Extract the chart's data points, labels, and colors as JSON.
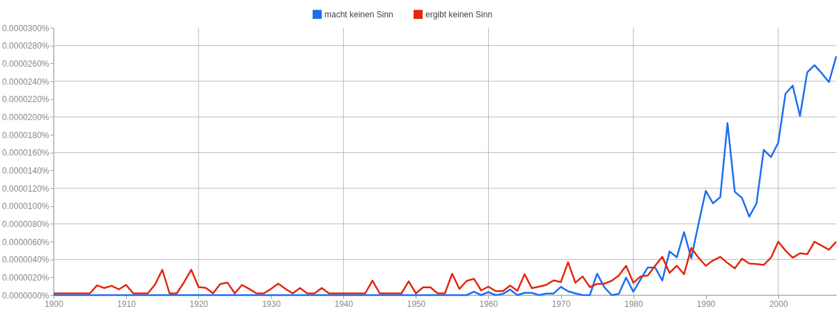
{
  "chart_data": {
    "type": "line",
    "x": [
      1900,
      1901,
      1902,
      1903,
      1904,
      1905,
      1906,
      1907,
      1908,
      1909,
      1910,
      1911,
      1912,
      1913,
      1914,
      1915,
      1916,
      1917,
      1918,
      1919,
      1920,
      1921,
      1922,
      1923,
      1924,
      1925,
      1926,
      1927,
      1928,
      1929,
      1930,
      1931,
      1932,
      1933,
      1934,
      1935,
      1936,
      1937,
      1938,
      1939,
      1940,
      1941,
      1942,
      1943,
      1944,
      1945,
      1946,
      1947,
      1948,
      1949,
      1950,
      1951,
      1952,
      1953,
      1954,
      1955,
      1956,
      1957,
      1958,
      1959,
      1960,
      1961,
      1962,
      1963,
      1964,
      1965,
      1966,
      1967,
      1968,
      1969,
      1970,
      1971,
      1972,
      1973,
      1974,
      1975,
      1976,
      1977,
      1978,
      1979,
      1980,
      1981,
      1982,
      1983,
      1984,
      1985,
      1986,
      1987,
      1988,
      1989,
      1990,
      1991,
      1992,
      1993,
      1994,
      1995,
      1996,
      1997,
      1998,
      1999,
      2000,
      2001,
      2002,
      2003,
      2004,
      2005,
      2006,
      2007,
      2008
    ],
    "series": [
      {
        "name": "macht keinen Sinn",
        "color": "#1a6ff0",
        "values": [
          0,
          0,
          0,
          0,
          0,
          0,
          0,
          0,
          0,
          0,
          0,
          0,
          0,
          0,
          0,
          0,
          0,
          0,
          0,
          0,
          0,
          0,
          0,
          0,
          0,
          0,
          0,
          0,
          0,
          0,
          0,
          0,
          0,
          0,
          0,
          0,
          0,
          0,
          0,
          0,
          0,
          0,
          0,
          0,
          0,
          0,
          0,
          0,
          0,
          0,
          0,
          0,
          0,
          0,
          0,
          0,
          0,
          0,
          3.8e-07,
          0,
          3.3e-07,
          0,
          1.3e-07,
          6.3e-07,
          0,
          2.5e-07,
          2.5e-07,
          0,
          1.8e-07,
          1.8e-07,
          9.3e-07,
          4.3e-07,
          2e-07,
          0,
          0,
          2.4e-06,
          8.8e-07,
          0,
          1.3e-07,
          1.97e-06,
          3.8e-07,
          1.77e-06,
          3.1e-06,
          3.1e-06,
          1.64e-06,
          4.9e-06,
          4.24e-06,
          7.07e-06,
          4.14e-06,
          8e-06,
          1.17e-05,
          1.03e-05,
          1.1e-05,
          1.93e-05,
          1.16e-05,
          1.09e-05,
          8.8e-06,
          1.03e-05,
          1.63e-05,
          1.55e-05,
          1.71e-05,
          2.26e-05,
          2.35e-05,
          2.01e-05,
          2.5e-05,
          2.58e-05,
          2.49e-05,
          2.39e-05,
          2.68e-05
        ]
      },
      {
        "name": "ergibt keinen Sinn",
        "color": "#e3260c",
        "values": [
          0,
          0,
          0,
          0,
          0,
          0,
          9e-07,
          6e-07,
          8.5e-07,
          4.5e-07,
          9.5e-07,
          0,
          0,
          0,
          1e-06,
          2.65e-06,
          0,
          0,
          1.25e-06,
          2.65e-06,
          7e-07,
          6.3e-07,
          0,
          1.05e-06,
          1.2e-06,
          0,
          9.5e-07,
          5e-07,
          0,
          0,
          5e-07,
          1.1e-06,
          5e-07,
          0,
          6e-07,
          0,
          0,
          6e-07,
          0,
          0,
          0,
          0,
          0,
          0,
          1.44e-06,
          0,
          0,
          0,
          0,
          1.36e-06,
          0,
          6.8e-07,
          6.8e-07,
          0,
          0,
          2.2e-06,
          5e-07,
          1.4e-06,
          1.64e-06,
          3.3e-07,
          7.6e-07,
          2.5e-07,
          2.5e-07,
          8.8e-07,
          3e-07,
          2.15e-06,
          5.8e-07,
          7.6e-07,
          9.6e-07,
          1.46e-06,
          1.26e-06,
          3.5e-06,
          1.2e-06,
          1.9e-06,
          7e-07,
          1.06e-06,
          1.09e-06,
          1.4e-06,
          2e-06,
          3.1e-06,
          1.19e-06,
          1.9e-06,
          2e-06,
          3.1e-06,
          4.1e-06,
          2.3e-06,
          3.1e-06,
          2.15e-06,
          5.1e-06,
          4e-06,
          3.1e-06,
          3.7e-06,
          4.1e-06,
          3.4e-06,
          2.8e-06,
          3.9e-06,
          3.35e-06,
          3.3e-06,
          3.2e-06,
          4e-06,
          5.8e-06,
          4.8e-06,
          4e-06,
          4.5e-06,
          4.4e-06,
          5.8e-06,
          5.35e-06,
          4.9e-06,
          5.8e-06
        ]
      }
    ],
    "xlim": [
      1900,
      2008
    ],
    "xticks": [
      1900,
      1910,
      1920,
      1930,
      1940,
      1950,
      1960,
      1970,
      1980,
      1990,
      2000
    ],
    "ylim": [
      0,
      3e-05
    ],
    "yticks": [
      {
        "value": 0,
        "label": "0.0000000%"
      },
      {
        "value": 2e-06,
        "label": "0.0000020%"
      },
      {
        "value": 4e-06,
        "label": "0.0000040%"
      },
      {
        "value": 6e-06,
        "label": "0.0000060%"
      },
      {
        "value": 8e-06,
        "label": "0.0000080%"
      },
      {
        "value": 1e-05,
        "label": "0.0000100%"
      },
      {
        "value": 1.2e-05,
        "label": "0.0000120%"
      },
      {
        "value": 1.4e-05,
        "label": "0.0000140%"
      },
      {
        "value": 1.6e-05,
        "label": "0.0000160%"
      },
      {
        "value": 1.8e-05,
        "label": "0.0000180%"
      },
      {
        "value": 2e-05,
        "label": "0.0000200%"
      },
      {
        "value": 2.2e-05,
        "label": "0.0000220%"
      },
      {
        "value": 2.4e-05,
        "label": "0.0000240%"
      },
      {
        "value": 2.6e-05,
        "label": "0.0000260%"
      },
      {
        "value": 2.8e-05,
        "label": "0.0000280%"
      },
      {
        "value": 3e-05,
        "label": "0.0000300%"
      }
    ],
    "grid": true,
    "legend": "top"
  }
}
